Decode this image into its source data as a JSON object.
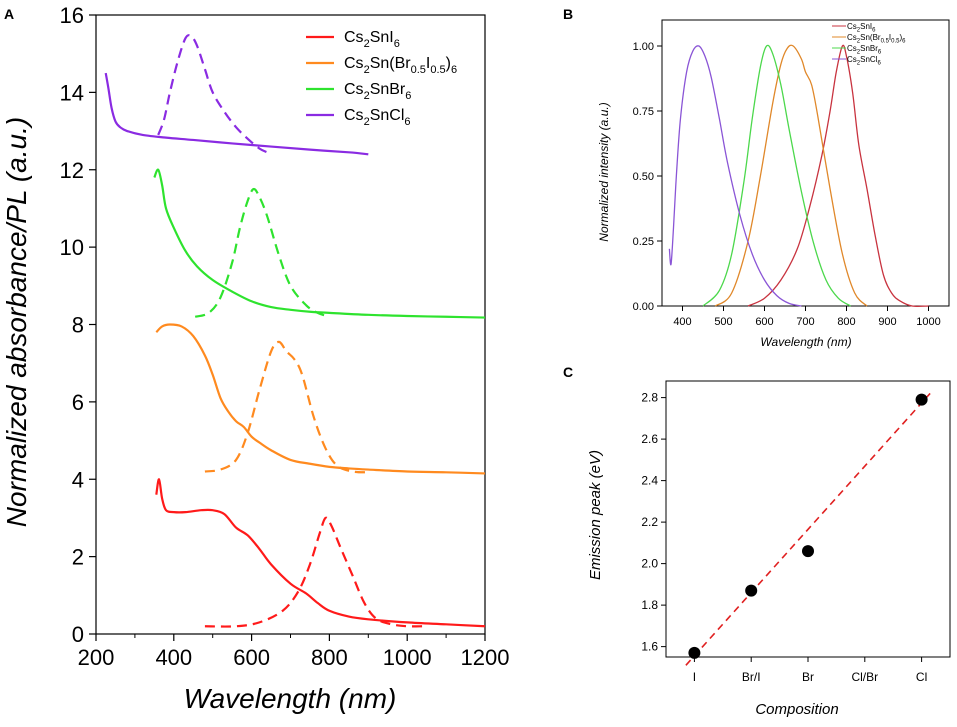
{
  "colors": {
    "I": "#ff1a1a",
    "BrI": "#ff8a1f",
    "Br": "#2ee32e",
    "Cl": "#8a2be2",
    "B_I": "#c8333f",
    "B_BrI": "#e0882a",
    "B_Br": "#4cd84c",
    "B_Cl": "#8a55d6",
    "fit": "#e02020"
  },
  "chart_data": [
    {
      "panel": "A",
      "type": "line",
      "xlabel": "Wavelength (nm)",
      "ylabel": "Normalized absorbance/PL (a.u.)",
      "xlim": [
        200,
        1200
      ],
      "ylim": [
        0,
        16
      ],
      "xticks": [
        "200",
        "400",
        "600",
        "800",
        "1000",
        "1200"
      ],
      "yticks": [
        "0",
        "2",
        "4",
        "6",
        "8",
        "10",
        "12",
        "14",
        "16"
      ],
      "legend": [
        {
          "key": "I",
          "base": "Cs",
          "sub1": "2",
          "mid": "SnI",
          "sub2": "6",
          "tail": ""
        },
        {
          "key": "BrI",
          "base": "Cs",
          "sub1": "2",
          "mid": "Sn(Br",
          "sub2": "0.5",
          "mid2": "I",
          "sub3": "0.5",
          "tail": ")",
          "sub4": "6"
        },
        {
          "key": "Br",
          "base": "Cs",
          "sub1": "2",
          "mid": "SnBr",
          "sub2": "6",
          "tail": ""
        },
        {
          "key": "Cl",
          "base": "Cs",
          "sub1": "2",
          "mid": "SnCl",
          "sub2": "6",
          "tail": ""
        }
      ],
      "series": [
        {
          "name": "Cs2SnI6 absorbance",
          "key": "I",
          "style": "solid",
          "x": [
            355,
            362,
            370,
            380,
            400,
            430,
            470,
            500,
            530,
            560,
            590,
            620,
            650,
            700,
            740,
            770,
            800,
            850,
            900,
            1000,
            1100,
            1200
          ],
          "y": [
            3.6,
            4.0,
            3.5,
            3.2,
            3.15,
            3.15,
            3.2,
            3.2,
            3.1,
            2.75,
            2.55,
            2.2,
            1.8,
            1.3,
            1.05,
            0.8,
            0.6,
            0.45,
            0.38,
            0.3,
            0.25,
            0.2
          ]
        },
        {
          "name": "Cs2SnI6 PL",
          "key": "I",
          "style": "dashed",
          "x": [
            480,
            560,
            620,
            680,
            720,
            750,
            775,
            790,
            805,
            830,
            860,
            890,
            920,
            960,
            1000,
            1040
          ],
          "y": [
            0.2,
            0.2,
            0.3,
            0.6,
            1.1,
            1.8,
            2.6,
            3.0,
            2.8,
            2.2,
            1.5,
            0.8,
            0.4,
            0.25,
            0.2,
            0.2
          ]
        },
        {
          "name": "Cs2Sn(Br0.5I0.5)6 absorbance",
          "key": "BrI",
          "style": "solid",
          "x": [
            355,
            370,
            390,
            420,
            450,
            480,
            500,
            520,
            540,
            560,
            580,
            600,
            620,
            650,
            700,
            750,
            800,
            850,
            900,
            1000,
            1100,
            1200
          ],
          "y": [
            7.8,
            7.95,
            8.0,
            7.95,
            7.7,
            7.2,
            6.7,
            6.1,
            5.75,
            5.5,
            5.35,
            5.1,
            4.95,
            4.75,
            4.5,
            4.4,
            4.32,
            4.28,
            4.25,
            4.2,
            4.18,
            4.15
          ]
        },
        {
          "name": "Cs2Sn(Br0.5I0.5)6 PL",
          "key": "BrI",
          "style": "dashed",
          "x": [
            480,
            520,
            560,
            590,
            620,
            650,
            670,
            690,
            710,
            730,
            760,
            790,
            820,
            860,
            900
          ],
          "y": [
            4.2,
            4.25,
            4.5,
            5.2,
            6.3,
            7.3,
            7.55,
            7.3,
            7.1,
            6.7,
            5.6,
            4.8,
            4.35,
            4.2,
            4.18
          ]
        },
        {
          "name": "Cs2SnBr6 absorbance",
          "key": "Br",
          "style": "solid",
          "x": [
            350,
            360,
            370,
            380,
            400,
            430,
            460,
            500,
            550,
            600,
            650,
            700,
            750,
            800,
            900,
            1000,
            1100,
            1200
          ],
          "y": [
            11.8,
            12.0,
            11.6,
            11.0,
            10.5,
            9.9,
            9.5,
            9.15,
            8.85,
            8.6,
            8.45,
            8.38,
            8.33,
            8.3,
            8.25,
            8.22,
            8.2,
            8.18
          ]
        },
        {
          "name": "Cs2SnBr6 PL",
          "key": "Br",
          "style": "dashed",
          "x": [
            455,
            490,
            520,
            550,
            570,
            590,
            605,
            620,
            640,
            670,
            700,
            740,
            770,
            800
          ],
          "y": [
            8.2,
            8.3,
            8.7,
            9.6,
            10.5,
            11.2,
            11.5,
            11.3,
            10.8,
            9.8,
            9.0,
            8.5,
            8.3,
            8.2
          ]
        },
        {
          "name": "Cs2SnCl6 absorbance",
          "key": "Cl",
          "style": "solid",
          "x": [
            225,
            232,
            240,
            250,
            262,
            280,
            320,
            380,
            450,
            550,
            650,
            750,
            850,
            900
          ],
          "y": [
            14.5,
            14.1,
            13.6,
            13.25,
            13.1,
            13.0,
            12.9,
            12.83,
            12.77,
            12.68,
            12.6,
            12.52,
            12.45,
            12.4
          ],
          "xlim_note": ""
        },
        {
          "name": "Cs2SnCl6 PL",
          "key": "Cl",
          "style": "dashed",
          "x": [
            360,
            375,
            390,
            410,
            430,
            445,
            460,
            480,
            500,
            530,
            560,
            590,
            620,
            640
          ],
          "y": [
            12.9,
            13.3,
            14.0,
            14.8,
            15.4,
            15.45,
            15.2,
            14.6,
            14.0,
            13.5,
            13.1,
            12.8,
            12.55,
            12.45
          ]
        }
      ]
    },
    {
      "panel": "B",
      "type": "line",
      "xlabel": "Wavelength (nm)",
      "ylabel": "Normalized intensity (a.u.)",
      "xlim": [
        350,
        1050
      ],
      "ylim": [
        0,
        1.1
      ],
      "xticks": [
        "400",
        "500",
        "600",
        "700",
        "800",
        "900",
        "1000"
      ],
      "yticks": [
        "0.00",
        "0.25",
        "0.50",
        "0.75",
        "1.00"
      ],
      "legend": [
        {
          "key": "B_I",
          "base": "Cs",
          "sub1": "2",
          "mid": "SnI",
          "sub2": "6",
          "tail": ""
        },
        {
          "key": "B_BrI",
          "base": "Cs",
          "sub1": "2",
          "mid": "Sn(Br",
          "sub2": "0.5",
          "mid2": "I",
          "sub3": "0.5",
          "tail": ")",
          "sub4": "6"
        },
        {
          "key": "B_Br",
          "base": "Cs",
          "sub1": "2",
          "mid": "SnBr",
          "sub2": "6",
          "tail": ""
        },
        {
          "key": "B_Cl",
          "base": "Cs",
          "sub1": "2",
          "mid": "SnCl",
          "sub2": "6",
          "tail": ""
        }
      ],
      "series": [
        {
          "name": "Cs2SnI6",
          "key": "B_I",
          "x": [
            560,
            600,
            640,
            680,
            710,
            740,
            760,
            775,
            790,
            800,
            815,
            830,
            850,
            870,
            890,
            910,
            930,
            960,
            1000
          ],
          "y": [
            0.0,
            0.03,
            0.1,
            0.22,
            0.38,
            0.58,
            0.75,
            0.9,
            1.0,
            0.96,
            0.82,
            0.62,
            0.45,
            0.27,
            0.12,
            0.05,
            0.02,
            0.0,
            0.0
          ]
        },
        {
          "name": "Cs2Sn(Br0.5I0.5)6",
          "key": "B_BrI",
          "x": [
            480,
            520,
            560,
            590,
            620,
            640,
            655,
            670,
            690,
            700,
            715,
            730,
            760,
            790,
            820,
            850
          ],
          "y": [
            0.0,
            0.05,
            0.25,
            0.5,
            0.78,
            0.93,
            0.99,
            1.0,
            0.95,
            0.9,
            0.85,
            0.73,
            0.45,
            0.2,
            0.05,
            0.0
          ]
        },
        {
          "name": "Cs2SnBr6",
          "key": "B_Br",
          "x": [
            450,
            490,
            520,
            550,
            570,
            590,
            605,
            620,
            640,
            660,
            690,
            720,
            750,
            780,
            810
          ],
          "y": [
            0.0,
            0.06,
            0.2,
            0.48,
            0.72,
            0.92,
            1.0,
            0.97,
            0.85,
            0.68,
            0.44,
            0.24,
            0.1,
            0.03,
            0.0
          ]
        },
        {
          "name": "Cs2SnCl6",
          "key": "B_Cl",
          "x": [
            368,
            372,
            378,
            385,
            395,
            410,
            425,
            440,
            455,
            470,
            490,
            510,
            540,
            570,
            600,
            630,
            660,
            690
          ],
          "y": [
            0.22,
            0.16,
            0.3,
            0.5,
            0.72,
            0.9,
            0.98,
            1.0,
            0.96,
            0.88,
            0.72,
            0.55,
            0.35,
            0.2,
            0.1,
            0.04,
            0.01,
            0.0
          ]
        }
      ]
    },
    {
      "panel": "C",
      "type": "scatter",
      "xlabel": "Composition",
      "ylabel": "Emission peak (eV)",
      "categories": [
        "I",
        "Br/I",
        "Br",
        "Cl/Br",
        "Cl"
      ],
      "ylim": [
        1.55,
        2.88
      ],
      "yticks": [
        "1.6",
        "1.8",
        "2.0",
        "2.2",
        "2.4",
        "2.6",
        "2.8"
      ],
      "points": [
        {
          "category": "I",
          "value": 1.57
        },
        {
          "category": "Br/I",
          "value": 1.87
        },
        {
          "category": "Br",
          "value": 2.06
        },
        {
          "category": "Cl",
          "value": 2.79
        }
      ],
      "fit": {
        "style": "dashed",
        "x_index": [
          -0.15,
          4.15
        ],
        "y": [
          1.51,
          2.82
        ]
      }
    }
  ],
  "labels": {
    "A": "A",
    "B": "B",
    "C": "C"
  }
}
